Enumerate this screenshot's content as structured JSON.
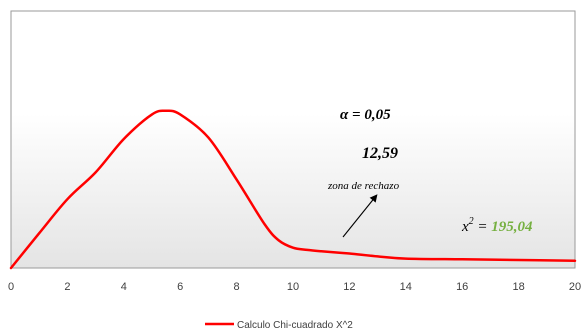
{
  "chart_data": {
    "type": "line",
    "xlim": [
      0,
      20
    ],
    "xticks": [
      "0",
      "2",
      "4",
      "6",
      "8",
      "10",
      "12",
      "14",
      "16",
      "18",
      "20"
    ],
    "series": [
      {
        "name": "Calculo Chi-cuadrado X^2",
        "color": "#ff0000",
        "x": [
          0,
          1,
          2,
          3,
          4,
          5,
          5.5,
          6,
          7,
          8,
          9,
          9.5,
          10,
          10.5,
          11,
          12,
          13,
          14,
          16,
          18,
          20
        ],
        "y": [
          0,
          0.48,
          0.95,
          1.32,
          1.78,
          2.12,
          2.17,
          2.12,
          1.8,
          1.22,
          0.6,
          0.38,
          0.28,
          0.25,
          0.23,
          0.2,
          0.16,
          0.13,
          0.12,
          0.11,
          0.1
        ]
      }
    ],
    "legend_position": "bottom",
    "grid": false,
    "annotations": {
      "alpha": "α = 0,05",
      "critical": "12,59",
      "rejection": "zona de rechazo",
      "chi_label": "x",
      "chi_sup": "2",
      "chi_eq": " = ",
      "chi_value": "195,04"
    },
    "colors": {
      "line": "#ff0000",
      "chi_value": "#76b041",
      "plot_gradient_top": "#ffffff",
      "plot_gradient_bottom": "#e4e4e4",
      "axis": "#888888"
    }
  }
}
